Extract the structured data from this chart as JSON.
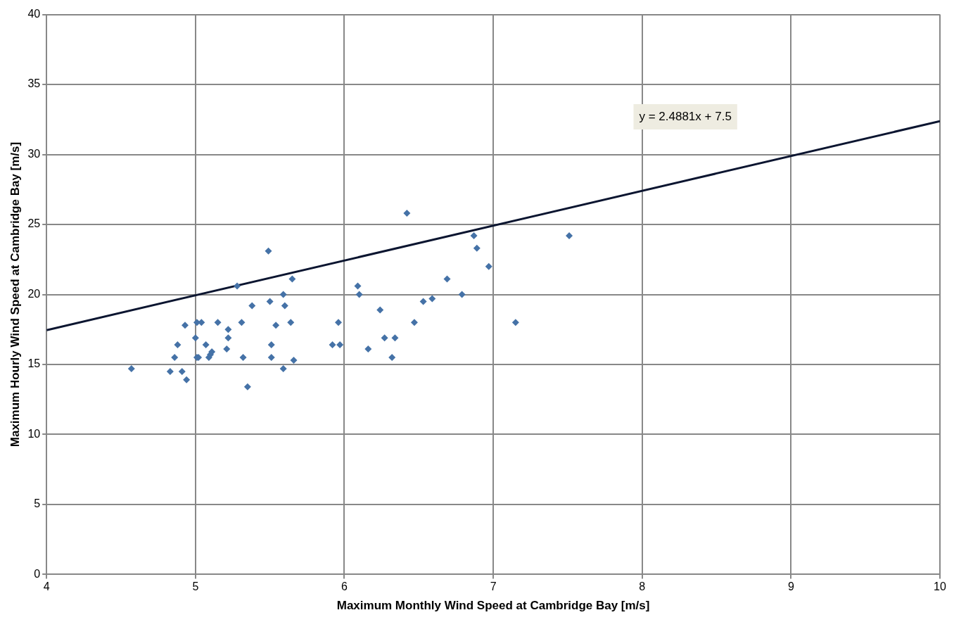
{
  "chart_data": {
    "type": "scatter",
    "xlabel": "Maximum Monthly Wind Speed at Cambridge Bay [m/s]",
    "ylabel": "Maximum Hourly Wind Speed at Cambridge Bay [m/s]",
    "xlim": [
      4,
      10
    ],
    "ylim": [
      0,
      40
    ],
    "xticks": [
      4,
      5,
      6,
      7,
      8,
      9,
      10
    ],
    "yticks": [
      0,
      5,
      10,
      15,
      20,
      25,
      30,
      35,
      40
    ],
    "grid": true,
    "legend": false,
    "annotations": [
      "y = 2.4881x + 7.5"
    ],
    "series": [
      {
        "type": "scatter",
        "color": "#4572a7",
        "marker": "diamond",
        "x": [
          4.57,
          4.83,
          4.86,
          4.88,
          4.91,
          4.93,
          4.94,
          5.0,
          5.01,
          5.02,
          5.01,
          5.04,
          5.07,
          5.09,
          5.1,
          5.11,
          5.15,
          5.21,
          5.22,
          5.22,
          5.28,
          5.31,
          5.32,
          5.35,
          5.38,
          5.49,
          5.5,
          5.51,
          5.51,
          5.54,
          5.59,
          5.59,
          5.6,
          5.64,
          5.65,
          5.66,
          5.92,
          5.96,
          5.97,
          6.09,
          6.1,
          6.16,
          6.24,
          6.27,
          6.32,
          6.34,
          6.42,
          6.47,
          6.53,
          6.59,
          6.69,
          6.79,
          6.87,
          6.89,
          6.97,
          7.15,
          7.51
        ],
        "values": [
          14.7,
          14.5,
          15.5,
          16.4,
          14.5,
          17.8,
          13.9,
          16.9,
          15.5,
          15.5,
          18.0,
          18.0,
          16.4,
          15.5,
          15.7,
          15.9,
          18.0,
          16.1,
          16.9,
          17.5,
          20.6,
          18.0,
          15.5,
          13.4,
          19.2,
          23.1,
          19.5,
          15.5,
          16.4,
          17.8,
          14.7,
          20.0,
          19.2,
          18.0,
          21.1,
          15.3,
          16.4,
          18.0,
          16.4,
          20.6,
          20.0,
          16.1,
          18.9,
          16.9,
          15.5,
          16.9,
          25.8,
          18.0,
          19.5,
          19.7,
          21.1,
          20.0,
          24.2,
          23.3,
          22.0,
          18.0,
          24.2
        ]
      },
      {
        "type": "line",
        "color": "#0b1530",
        "marker": "none",
        "x": [
          4,
          10
        ],
        "values": [
          17.45,
          32.38
        ]
      }
    ]
  }
}
